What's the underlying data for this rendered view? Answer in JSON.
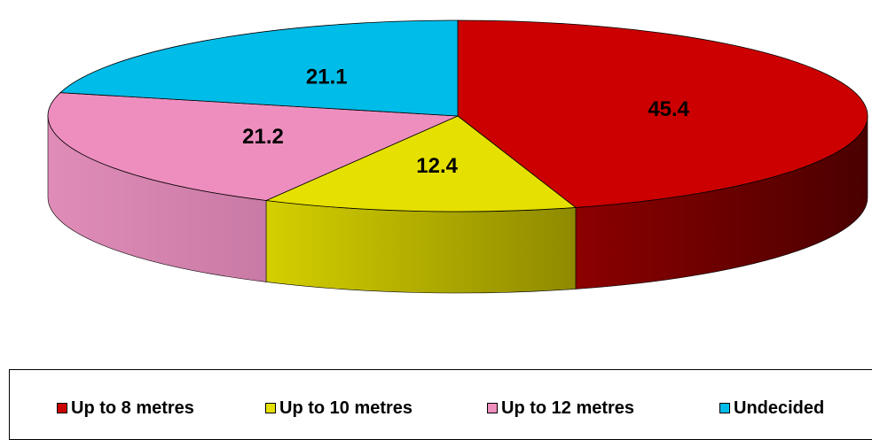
{
  "chart_data": {
    "type": "pie",
    "style": "3d",
    "categories": [
      "Up to 8 metres",
      "Up to 10 metres",
      "Up to 12 metres",
      "Undecided"
    ],
    "values": [
      45.4,
      12.4,
      21.2,
      21.1
    ],
    "data_labels": [
      "45.4",
      "12.4",
      "21.2",
      "21.1"
    ],
    "colors": [
      "#CC0000",
      "#E6E000",
      "#EE8EBF",
      "#00BCE8"
    ],
    "side_colors_light": [
      "#8C0000",
      "#D4CF00",
      "#E08CB8",
      "#009CC8"
    ],
    "side_colors_dark": [
      "#4A0000",
      "#8E8A00",
      "#C97AA5",
      "#006A8E"
    ],
    "title": "",
    "legend_position": "bottom"
  }
}
